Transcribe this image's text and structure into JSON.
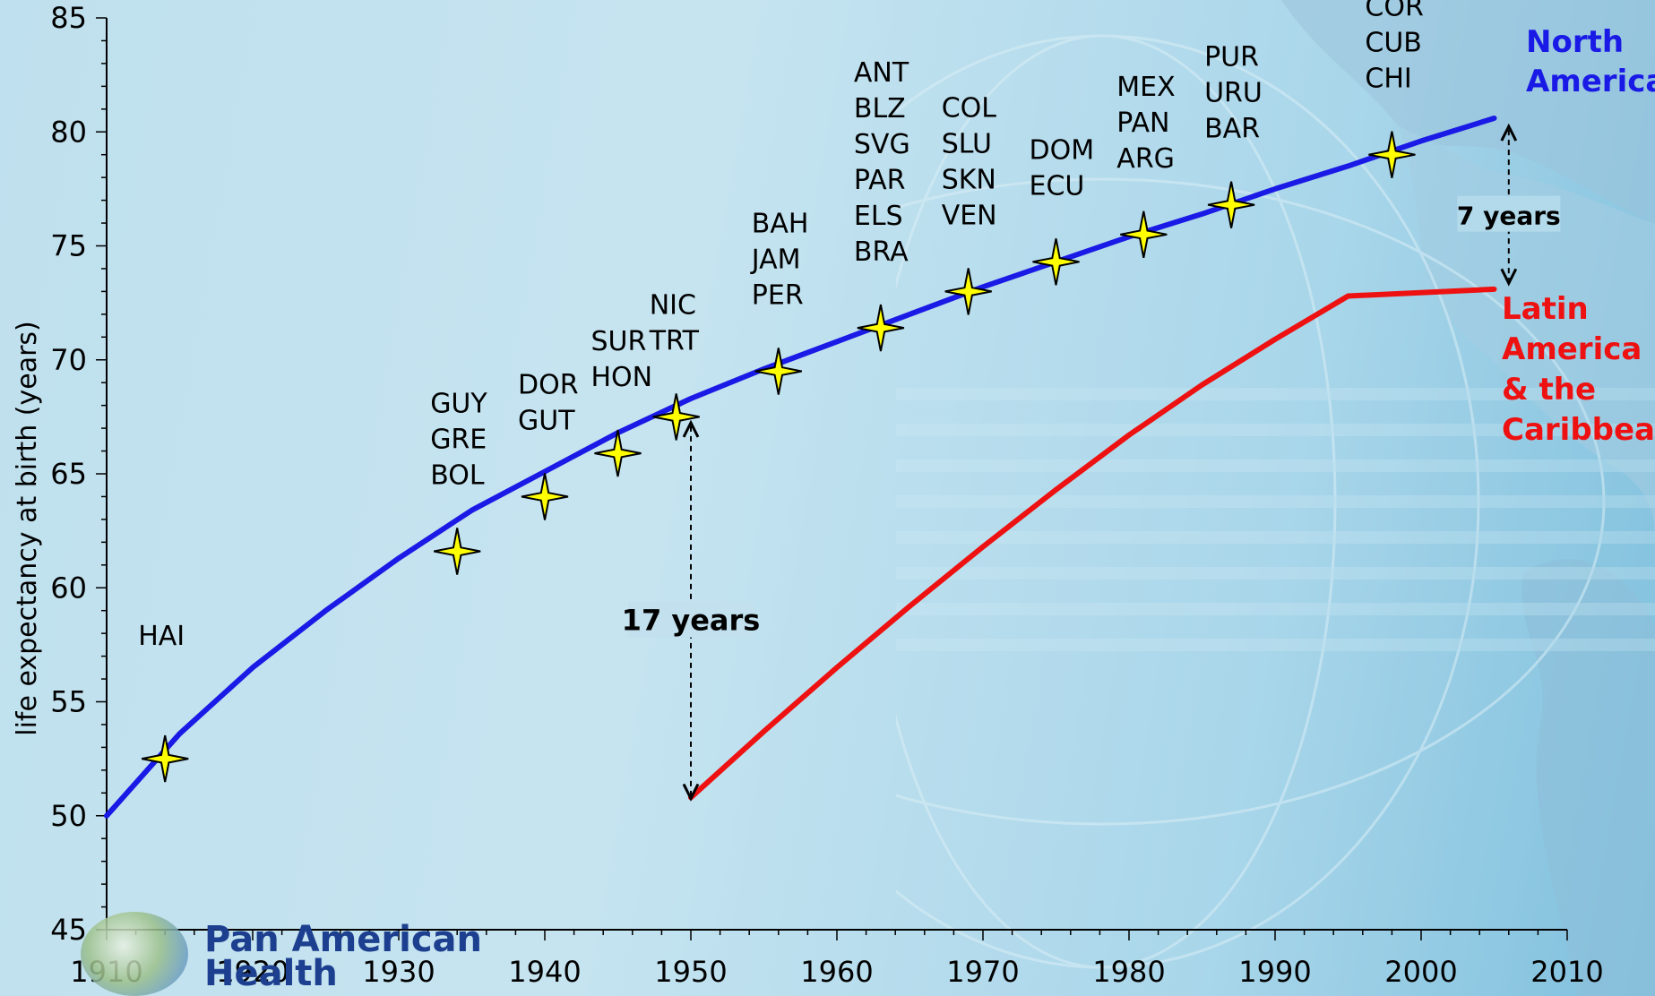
{
  "colors": {
    "north_america": "#1a1ae6",
    "latin_america": "#ee1111",
    "star_fill": "#ffff00",
    "axis": "#000000"
  },
  "logo": {
    "line1": "Pan American",
    "line2": "Health"
  },
  "chart_data": {
    "type": "line",
    "title": "",
    "ylabel": "life expectancy at birth (years)",
    "xlabel": "",
    "xlim": [
      1910,
      2010
    ],
    "ylim": [
      45,
      85
    ],
    "x_ticks": [
      1910,
      1920,
      1930,
      1940,
      1950,
      1960,
      1970,
      1980,
      1990,
      2000,
      2010
    ],
    "y_ticks": [
      45,
      50,
      55,
      60,
      65,
      70,
      75,
      80,
      85
    ],
    "series": [
      {
        "name": "North America",
        "legend_label": [
          "North",
          "America"
        ],
        "color": "#1a1ae6",
        "points": [
          [
            1910,
            50.0
          ],
          [
            1915,
            53.6
          ],
          [
            1920,
            56.5
          ],
          [
            1925,
            59.0
          ],
          [
            1930,
            61.3
          ],
          [
            1935,
            63.4
          ],
          [
            1940,
            65.1
          ],
          [
            1945,
            66.8
          ],
          [
            1950,
            68.3
          ],
          [
            1955,
            69.6
          ],
          [
            1960,
            70.8
          ],
          [
            1965,
            72.0
          ],
          [
            1970,
            73.2
          ],
          [
            1975,
            74.3
          ],
          [
            1980,
            75.4
          ],
          [
            1985,
            76.4
          ],
          [
            1990,
            77.5
          ],
          [
            1995,
            78.5
          ],
          [
            2000,
            79.6
          ],
          [
            2005,
            80.6
          ]
        ]
      },
      {
        "name": "Latin America & the Caribbean",
        "legend_label": [
          "Latin",
          "America",
          "& the",
          "Caribbean"
        ],
        "color": "#ee1111",
        "points": [
          [
            1950,
            50.8
          ],
          [
            1955,
            53.7
          ],
          [
            1960,
            56.5
          ],
          [
            1965,
            59.2
          ],
          [
            1970,
            61.8
          ],
          [
            1975,
            64.3
          ],
          [
            1980,
            66.7
          ],
          [
            1985,
            68.9
          ],
          [
            1990,
            70.9
          ],
          [
            1995,
            72.8
          ],
          [
            2005,
            73.1
          ]
        ]
      }
    ],
    "milestones": [
      {
        "year": 1914,
        "value": 52.5,
        "countries": [
          "HAI"
        ]
      },
      {
        "year": 1934,
        "value": 61.6,
        "countries": [
          "GUY",
          "GRE",
          "BOL"
        ]
      },
      {
        "year": 1940,
        "value": 64.0,
        "countries": [
          "DOR",
          "GUT"
        ]
      },
      {
        "year": 1945,
        "value": 65.9,
        "countries": [
          "SUR",
          "HON"
        ]
      },
      {
        "year": 1949,
        "value": 67.5,
        "countries": [
          "NIC",
          "TRT"
        ]
      },
      {
        "year": 1956,
        "value": 69.5,
        "countries": [
          "BAH",
          "JAM",
          "PER"
        ]
      },
      {
        "year": 1963,
        "value": 71.4,
        "countries": [
          "ANT",
          "BLZ",
          "SVG",
          "PAR",
          "ELS",
          "BRA"
        ]
      },
      {
        "year": 1969,
        "value": 73.0,
        "countries": [
          "COL",
          "SLU",
          "SKN",
          "VEN"
        ]
      },
      {
        "year": 1975,
        "value": 74.3,
        "countries": [
          "DOM",
          "ECU"
        ]
      },
      {
        "year": 1981,
        "value": 75.5,
        "countries": [
          "MEX",
          "PAN",
          "ARG"
        ]
      },
      {
        "year": 1987,
        "value": 76.8,
        "countries": [
          "PUR",
          "URU",
          "BAR"
        ]
      },
      {
        "year": 1998,
        "value": 79.0,
        "countries": [
          "COR",
          "CUB",
          "CHI"
        ]
      }
    ],
    "annotations": [
      {
        "text": "17 years",
        "x": 1950,
        "from": 67.4,
        "to": 50.6
      },
      {
        "text": "7 years",
        "x": 2006,
        "from": 80.4,
        "to": 73.2
      }
    ]
  }
}
